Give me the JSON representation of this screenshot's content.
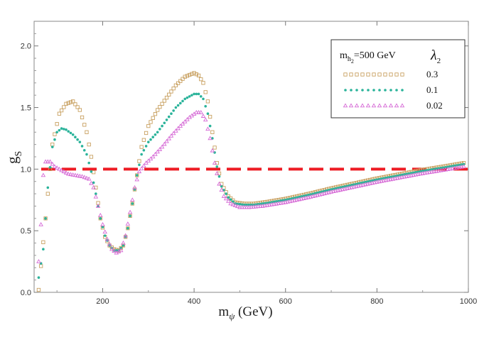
{
  "chart_data": {
    "type": "scatter",
    "title": "",
    "xlabel": {
      "main": "m",
      "sub": "ψ",
      "unit": " (GeV)"
    },
    "ylabel": {
      "main": "g",
      "sub": "S"
    },
    "xlim": [
      50,
      1000
    ],
    "ylim": [
      0,
      2.2
    ],
    "xticks": [
      200,
      400,
      600,
      800,
      1000
    ],
    "xtick_labels": [
      "200",
      "400",
      "600",
      "800",
      "1000"
    ],
    "yticks": [
      0.0,
      0.5,
      1.0,
      1.5,
      2.0
    ],
    "ytick_labels": [
      "0.0",
      "0.5",
      "1.0",
      "1.5",
      "2.0"
    ],
    "legend": {
      "placement": "top-right",
      "title_main": "m",
      "title_sub": "h",
      "title_subsub": "2",
      "title_value": "=500 GeV",
      "param_main": "λ",
      "param_sub": "2"
    },
    "reference_line": {
      "y": 1.0,
      "style": "dashed",
      "color": "#ee1c24"
    },
    "series": [
      {
        "name": "0.3",
        "marker": "square",
        "color": "#c8a060",
        "points": [
          [
            60,
            0.02
          ],
          [
            75,
            0.6
          ],
          [
            90,
            1.2
          ],
          [
            105,
            1.45
          ],
          [
            120,
            1.53
          ],
          [
            135,
            1.55
          ],
          [
            150,
            1.48
          ],
          [
            165,
            1.3
          ],
          [
            175,
            1.1
          ],
          [
            185,
            0.85
          ],
          [
            195,
            0.6
          ],
          [
            205,
            0.45
          ],
          [
            215,
            0.38
          ],
          [
            225,
            0.35
          ],
          [
            235,
            0.34
          ],
          [
            245,
            0.38
          ],
          [
            255,
            0.52
          ],
          [
            265,
            0.72
          ],
          [
            275,
            0.95
          ],
          [
            285,
            1.18
          ],
          [
            300,
            1.35
          ],
          [
            320,
            1.48
          ],
          [
            340,
            1.58
          ],
          [
            360,
            1.68
          ],
          [
            380,
            1.75
          ],
          [
            400,
            1.78
          ],
          [
            410,
            1.76
          ],
          [
            420,
            1.7
          ],
          [
            430,
            1.55
          ],
          [
            440,
            1.3
          ],
          [
            450,
            1.05
          ],
          [
            460,
            0.88
          ],
          [
            475,
            0.78
          ],
          [
            490,
            0.73
          ],
          [
            510,
            0.72
          ],
          [
            530,
            0.72
          ],
          [
            560,
            0.735
          ],
          [
            600,
            0.76
          ],
          [
            650,
            0.8
          ],
          [
            700,
            0.845
          ],
          [
            750,
            0.885
          ],
          [
            800,
            0.925
          ],
          [
            850,
            0.96
          ],
          [
            900,
            0.995
          ],
          [
            950,
            1.025
          ],
          [
            990,
            1.05
          ]
        ]
      },
      {
        "name": "0.1",
        "marker": "star",
        "color": "#2ab39a",
        "points": [
          [
            60,
            0.12
          ],
          [
            70,
            0.35
          ],
          [
            80,
            0.85
          ],
          [
            90,
            1.18
          ],
          [
            100,
            1.3
          ],
          [
            110,
            1.33
          ],
          [
            120,
            1.32
          ],
          [
            135,
            1.28
          ],
          [
            150,
            1.22
          ],
          [
            165,
            1.12
          ],
          [
            175,
            0.98
          ],
          [
            185,
            0.8
          ],
          [
            195,
            0.6
          ],
          [
            205,
            0.46
          ],
          [
            215,
            0.38
          ],
          [
            225,
            0.34
          ],
          [
            235,
            0.34
          ],
          [
            245,
            0.38
          ],
          [
            255,
            0.52
          ],
          [
            265,
            0.72
          ],
          [
            275,
            0.95
          ],
          [
            285,
            1.12
          ],
          [
            300,
            1.22
          ],
          [
            320,
            1.3
          ],
          [
            340,
            1.4
          ],
          [
            360,
            1.5
          ],
          [
            380,
            1.57
          ],
          [
            400,
            1.61
          ],
          [
            410,
            1.61
          ],
          [
            420,
            1.57
          ],
          [
            430,
            1.45
          ],
          [
            440,
            1.25
          ],
          [
            450,
            1.02
          ],
          [
            460,
            0.86
          ],
          [
            475,
            0.77
          ],
          [
            490,
            0.72
          ],
          [
            510,
            0.71
          ],
          [
            530,
            0.71
          ],
          [
            560,
            0.725
          ],
          [
            600,
            0.75
          ],
          [
            650,
            0.79
          ],
          [
            700,
            0.835
          ],
          [
            750,
            0.875
          ],
          [
            800,
            0.915
          ],
          [
            850,
            0.95
          ],
          [
            900,
            0.985
          ],
          [
            950,
            1.015
          ],
          [
            990,
            1.04
          ]
        ]
      },
      {
        "name": "0.02",
        "marker": "triangle",
        "color": "#d66ad6",
        "points": [
          [
            60,
            0.25
          ],
          [
            65,
            0.55
          ],
          [
            70,
            0.95
          ],
          [
            75,
            1.06
          ],
          [
            85,
            1.06
          ],
          [
            95,
            1.02
          ],
          [
            110,
            0.99
          ],
          [
            125,
            0.96
          ],
          [
            140,
            0.95
          ],
          [
            155,
            0.94
          ],
          [
            170,
            0.92
          ],
          [
            180,
            0.85
          ],
          [
            190,
            0.7
          ],
          [
            200,
            0.55
          ],
          [
            210,
            0.43
          ],
          [
            220,
            0.35
          ],
          [
            230,
            0.32
          ],
          [
            240,
            0.34
          ],
          [
            250,
            0.46
          ],
          [
            260,
            0.65
          ],
          [
            270,
            0.85
          ],
          [
            280,
            0.98
          ],
          [
            295,
            1.05
          ],
          [
            310,
            1.1
          ],
          [
            330,
            1.18
          ],
          [
            350,
            1.27
          ],
          [
            370,
            1.35
          ],
          [
            390,
            1.42
          ],
          [
            405,
            1.46
          ],
          [
            415,
            1.46
          ],
          [
            425,
            1.4
          ],
          [
            435,
            1.25
          ],
          [
            445,
            1.05
          ],
          [
            455,
            0.88
          ],
          [
            465,
            0.78
          ],
          [
            480,
            0.72
          ],
          [
            500,
            0.69
          ],
          [
            520,
            0.69
          ],
          [
            550,
            0.7
          ],
          [
            600,
            0.73
          ],
          [
            650,
            0.77
          ],
          [
            700,
            0.815
          ],
          [
            750,
            0.855
          ],
          [
            800,
            0.895
          ],
          [
            850,
            0.93
          ],
          [
            900,
            0.965
          ],
          [
            950,
            0.995
          ],
          [
            990,
            1.02
          ]
        ]
      }
    ]
  }
}
